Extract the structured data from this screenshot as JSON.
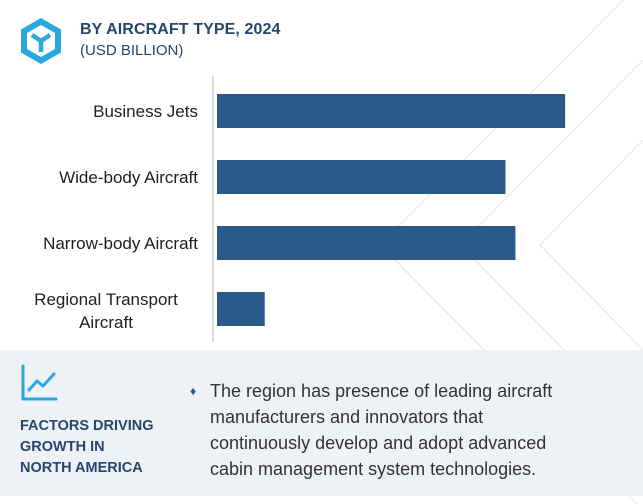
{
  "header": {
    "title": "BY AIRCRAFT TYPE, 2024",
    "subtitle": "(USD BILLION)"
  },
  "chart_data": {
    "type": "bar",
    "orientation": "horizontal",
    "title": "BY AIRCRAFT TYPE, 2024",
    "subtitle": "(USD BILLION)",
    "categories": [
      "Business Jets",
      "Wide-body Aircraft",
      "Narrow-body Aircraft",
      "Regional Transport Aircraft"
    ],
    "values": [
      3.5,
      2.9,
      3.0,
      0.48
    ],
    "xlim": [
      0,
      3.8
    ],
    "grid": false,
    "color": "#2a5a8a"
  },
  "footer": {
    "factors_lines": [
      "FACTORS DRIVING",
      "GROWTH IN",
      "NORTH AMERICA"
    ],
    "bullet": "♦",
    "description_lines": [
      "The region has presence of leading aircraft",
      "manufacturers and innovators that",
      "continuously develop and adopt advanced",
      "cabin management system technologies."
    ]
  },
  "colors": {
    "brand": "#27466e",
    "bar": "#2a5a8a",
    "panel": "#eef1f5",
    "icon": "#29a8e0"
  },
  "icons": [
    "logo-icon",
    "trend-chart-icon"
  ]
}
